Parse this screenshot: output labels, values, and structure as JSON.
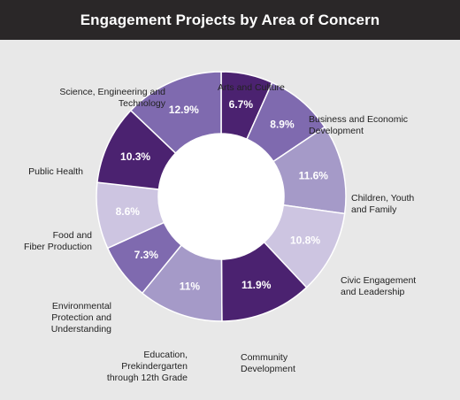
{
  "header": {
    "title": "Engagement Projects by Area of Concern"
  },
  "colors": {
    "header_bg": "#2a2728",
    "panel_bg": "#e8e8e8",
    "dark": "#4b2270",
    "medium": "#7f6aaf",
    "light": "#a59ac8",
    "pale": "#cdc5e1"
  },
  "chart_data": {
    "type": "pie",
    "style": "donut",
    "title": "Engagement Projects by Area of Concern",
    "slices": [
      {
        "label": "Arts and Culture",
        "value": 6.7,
        "value_label": "6.7%",
        "color": "#4b2270"
      },
      {
        "label": "Business and Economic Development",
        "value": 8.9,
        "value_label": "8.9%",
        "color": "#7f6aaf"
      },
      {
        "label": "Children, Youth and Family",
        "value": 11.6,
        "value_label": "11.6%",
        "color": "#a59ac8"
      },
      {
        "label": "Civic Engagement and Leadership",
        "value": 10.8,
        "value_label": "10.8%",
        "color": "#cdc5e1"
      },
      {
        "label": "Community Development",
        "value": 11.9,
        "value_label": "11.9%",
        "color": "#4b2270"
      },
      {
        "label": "Education, Prekindergarten through 12th Grade",
        "value": 11,
        "value_label": "11%",
        "color": "#a59ac8"
      },
      {
        "label": "Environmental Protection and Understanding",
        "value": 7.3,
        "value_label": "7.3%",
        "color": "#7f6aaf"
      },
      {
        "label": "Food and Fiber Production",
        "value": 8.6,
        "value_label": "8.6%",
        "color": "#cdc5e1"
      },
      {
        "label": "Public Health",
        "value": 10.3,
        "value_label": "10.3%",
        "color": "#4b2270"
      },
      {
        "label": "Science, Engineering and Technology",
        "value": 12.9,
        "value_label": "12.9%",
        "color": "#7f6aaf"
      }
    ],
    "outer_labels": [
      "Arts and Culture",
      "Business and Economic\nDevelopment",
      "Children, Youth\nand Family",
      "Civic Engagement\nand Leadership",
      "Community\nDevelopment",
      "Education,\nPrekindergarten\nthrough 12th Grade",
      "Environmental\nProtection and\nUnderstanding",
      "Food and\nFiber Production",
      "Public Health",
      "Science, Engineering and\nTechnology"
    ]
  }
}
